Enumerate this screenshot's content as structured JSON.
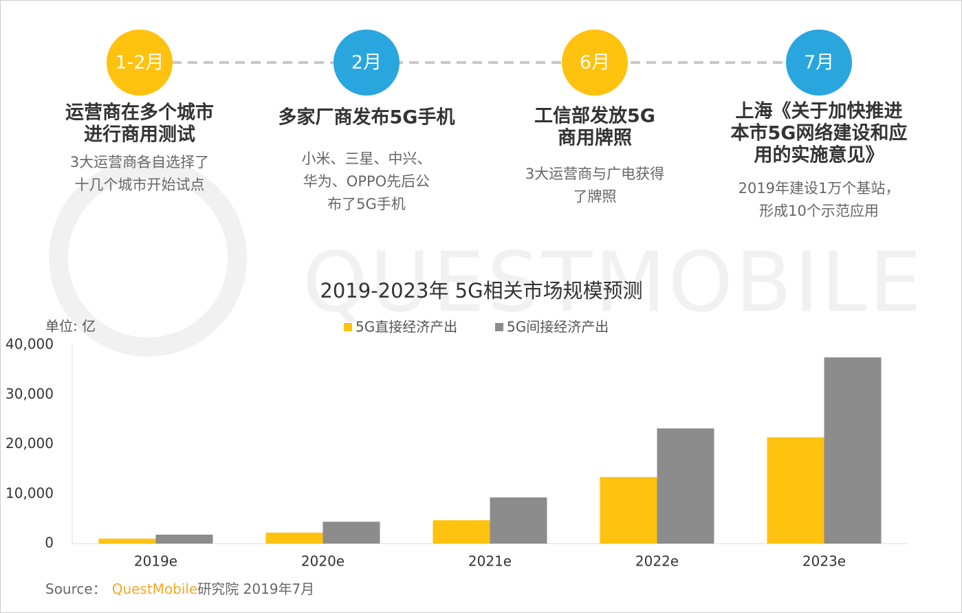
{
  "timeline": [
    {
      "label": "1-2月",
      "color": "#FFC20E",
      "title": [
        "运营商在多个城市",
        "进行商用测试"
      ],
      "desc": [
        "3大运营商各自选择了",
        "十几个城市开始试点"
      ]
    },
    {
      "label": "2月",
      "color": "#29A6DE",
      "title": [
        "多家厂商发布5G手机"
      ],
      "desc": [
        "小米、三星、中兴、",
        "华为、OPPO先后公",
        "布了5G手机"
      ]
    },
    {
      "label": "6月",
      "color": "#FFC20E",
      "title": [
        "工信部发放5G",
        "商用牌照"
      ],
      "desc": [
        "3大运营商与广电获得",
        "了牌照"
      ]
    },
    {
      "label": "7月",
      "color": "#29A6DE",
      "title": [
        "上海《关于加快推进",
        "本市5G网络建设和应",
        "用的实施意见》"
      ],
      "desc": [
        "2019年建设1万个基站，",
        "形成10个示范应用"
      ]
    }
  ],
  "watermark": "QUESTMOBILE",
  "chart_data": {
    "type": "bar",
    "title": "2019-2023年 5G相关市场规模预测",
    "unit_label": "单位: 亿",
    "categories": [
      "2019e",
      "2020e",
      "2021e",
      "2022e",
      "2023e"
    ],
    "series": [
      {
        "name": "5G直接经济产出",
        "color": "#FFC20E",
        "values": [
          1000,
          2200,
          4700,
          13400,
          21400
        ]
      },
      {
        "name": "5G间接经济产出",
        "color": "#8C8C8C",
        "values": [
          1800,
          4400,
          9300,
          23200,
          37500
        ]
      }
    ],
    "ylim": [
      0,
      40000
    ],
    "yticks": [
      0,
      {
        "value": 10000,
        "label": "10,000"
      },
      {
        "value": 20000,
        "label": "20,000"
      },
      {
        "value": 30000,
        "label": "30,000"
      },
      {
        "value": 40000,
        "label": "40,000"
      }
    ],
    "legend": "top"
  },
  "source": {
    "prefix": "Source：",
    "brand": "QuestMobile",
    "suffix": "研究院 2019年7月"
  }
}
